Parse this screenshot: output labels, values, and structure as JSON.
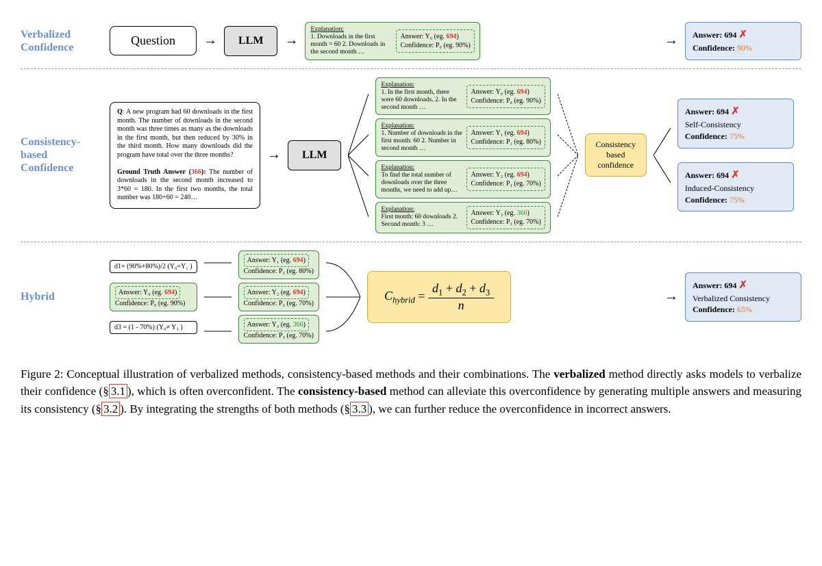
{
  "labels": {
    "verbalized": "Verbalized Confidence",
    "consistency": "Consistency-based Confidence",
    "hybrid": "Hybrid"
  },
  "question_box": "Question",
  "llm": "LLM",
  "row1": {
    "explain_head": "Explanation:",
    "explain_text": "1. Downloads in the first month = 60 2. Downloads in the second month …",
    "answer_line": "Answer: Y₀ (eg. ",
    "answer_val": "694",
    "answer_close": ")",
    "conf_line": "Confidence: P₀ (eg. 90%)",
    "result_answer": "Answer: 694",
    "result_conf_label": "Confidence: ",
    "result_conf_val": "90%"
  },
  "problem": {
    "q_label": "Q",
    "q_text": ": A new program had 60 downloads in the first month. The number of downloads in the second month was three times as many as the downloads in the first month, but then reduced by 30% in the third month. How many downloads did the program have total over the three months?",
    "gt_label": "Ground Truth Answer (",
    "gt_val": "366",
    "gt_close": "):",
    "gt_text": "The number of downloads in the second month increased to 3*60 = 180. In the first two months, the total number was 180+60 = 240…"
  },
  "row2_explains": [
    {
      "head": "Explanation:",
      "text": "1. In the first month, there were 60 downloads. 2. In the second month …",
      "ans": "Answer: Y₀ (eg. ",
      "val": "694",
      "close": ")",
      "conf": "Confidence: P₀ (eg. 90%)"
    },
    {
      "head": "Explanation:",
      "text": "1. Number of downloads in the first month: 60 2. Number in second month …",
      "ans": "Answer: Y₁ (eg. ",
      "val": "694",
      "close": ")",
      "conf": "Confidence: P₁ (eg. 80%)"
    },
    {
      "head": "Explanation:",
      "text": "To find the total number of downloads over the three months, we need to add up…",
      "ans": "Answer: Y₂ (eg. ",
      "val": "694",
      "close": ")",
      "conf": "Confidence: P₂ (eg. 70%)"
    },
    {
      "head": "Explanation:",
      "text": "First month: 60 downloads 2. Second month: 3 …",
      "ans": "Answer: Y₃ (eg. ",
      "val": "366",
      "close": ")",
      "conf": "Confidence: P₃ (eg. 70%)"
    }
  ],
  "consistency_box": "Consistency based confidence",
  "row2_results": [
    {
      "ans": "Answer: 694",
      "label": "Self-Consistency",
      "conf_label": "Confidence: ",
      "conf": "75%"
    },
    {
      "ans": "Answer: 694",
      "label": "Induced-Consistency",
      "conf_label": "Confidence: ",
      "conf": "75%"
    }
  ],
  "hybrid": {
    "d1": "d1= (90%+80%)/2 (Y₀=Y₁ )",
    "d3": "d3 = (1 - 70%)  (Y₀≠ Y₃ )",
    "center_ans": "Answer: Y₀ (eg. ",
    "center_val": "694",
    "center_close": ")",
    "center_conf": "Confidence: P₀ (eg. 90%)",
    "col2": [
      {
        "ans": "Answer: Y₁ (eg. ",
        "val": "694",
        "close": ")",
        "conf": "Confidence: P₁ (eg. 80%)"
      },
      {
        "ans": "Answer: Y₂ (eg. ",
        "val": "694",
        "close": ")",
        "conf": "Confidence: P₂ (eg. 70%)"
      },
      {
        "ans": "Answer: Y₃ (eg. ",
        "val": "366",
        "close": ")",
        "conf": "Confidence: P₃ (eg. 70%)"
      }
    ],
    "result_ans": "Answer: 694",
    "result_label": "Verbalized Consistency",
    "result_conf_label": "Confidence: ",
    "result_conf": "65%"
  },
  "caption": {
    "prefix": "Figure 2:  Conceptual illustration of verbalized methods, consistency-based methods and their combinations. The ",
    "b1": "verbalized",
    "p2": " method directly asks models to verbalize their confidence (§",
    "r1": "3.1",
    "p3": "), which is often overconfident. The ",
    "b2": "consistency-based",
    "p4": " method can alleviate this overconfidence by generating multiple answers and measuring its consistency (§",
    "r2": "3.2",
    "p5": "). By integrating the strengths of both methods (§",
    "r3": "3.3",
    "p6": "), we can further reduce the overconfidence in incorrect answers."
  },
  "colors": {
    "label_blue": "#6b8fcc",
    "green_border": "#3a8a3a",
    "green_bg": "#e1eed7",
    "yellow_border": "#d4a838",
    "yellow_bg": "#fce9a8",
    "blue_border": "#5a8dc4",
    "blue_bg": "#e1eaf4",
    "red": "#d83a2f",
    "orange": "#e07830"
  }
}
